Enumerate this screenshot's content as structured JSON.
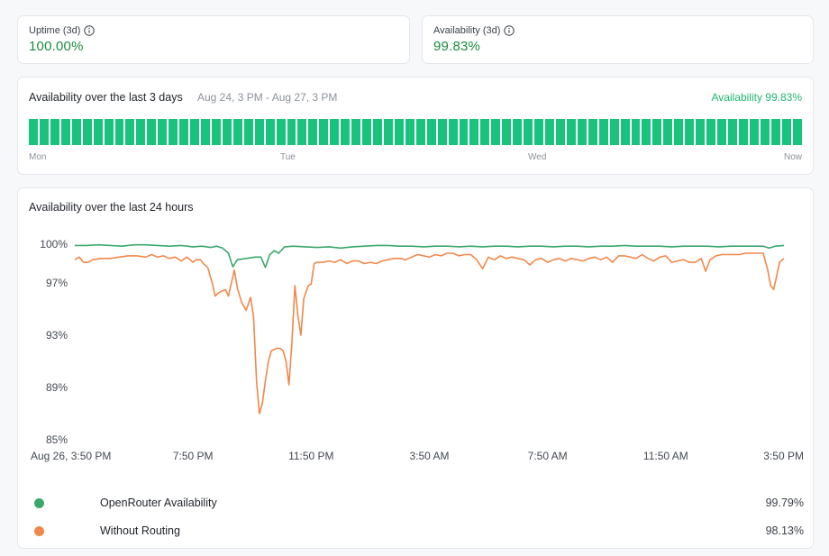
{
  "uptime": {
    "label": "Uptime (3d)",
    "value": "100.00%"
  },
  "availability": {
    "label": "Availability (3d)",
    "value": "99.83%"
  },
  "availability_3d": {
    "title": "Availability over the last 3 days",
    "range": "Aug 24, 3 PM - Aug 27, 3 PM",
    "summary": "Availability 99.83%",
    "day_labels": [
      "Mon",
      "Tue",
      "Wed",
      "Now"
    ],
    "hourly_status": [
      "up",
      "up",
      "up",
      "up",
      "up",
      "up",
      "up",
      "up",
      "up",
      "up",
      "up",
      "up",
      "up",
      "up",
      "up",
      "up",
      "up",
      "up",
      "up",
      "up",
      "up",
      "up",
      "up",
      "up",
      "up",
      "up",
      "up",
      "up",
      "up",
      "up",
      "up",
      "up",
      "up",
      "up",
      "up",
      "up",
      "up",
      "up",
      "up",
      "up",
      "up",
      "up",
      "up",
      "up",
      "up",
      "up",
      "up",
      "up",
      "up",
      "up",
      "up",
      "up",
      "up",
      "up",
      "up",
      "up",
      "up",
      "up",
      "up",
      "up",
      "up",
      "up",
      "up",
      "up",
      "up",
      "up",
      "up",
      "up",
      "up",
      "up",
      "up",
      "up"
    ]
  },
  "availability_24h": {
    "title": "Availability over the last 24 hours"
  },
  "legend": [
    {
      "name": "OpenRouter Availability",
      "value": "99.79%",
      "color": "#3aa86b"
    },
    {
      "name": "Without Routing",
      "value": "98.13%",
      "color": "#f0884b"
    }
  ],
  "chart_data": {
    "type": "line",
    "y_ticks": [
      "100%",
      "97%",
      "93%",
      "89%",
      "85%"
    ],
    "ylim": [
      85,
      100
    ],
    "x_tick_labels": [
      "Aug 26, 3:50 PM",
      "7:50 PM",
      "11:50 PM",
      "3:50 AM",
      "7:50 AM",
      "11:50 AM",
      "3:50 PM"
    ],
    "x_hours": [
      0,
      4,
      8,
      12,
      16,
      20,
      24
    ],
    "series": [
      {
        "name": "OpenRouter Availability",
        "color": "#3aa86b",
        "points": [
          [
            0,
            99.9
          ],
          [
            0.4,
            99.9
          ],
          [
            0.8,
            99.95
          ],
          [
            1.2,
            99.9
          ],
          [
            1.6,
            99.85
          ],
          [
            2.0,
            99.95
          ],
          [
            2.4,
            99.95
          ],
          [
            2.8,
            99.9
          ],
          [
            3.2,
            99.85
          ],
          [
            3.6,
            99.9
          ],
          [
            4.0,
            99.8
          ],
          [
            4.3,
            99.85
          ],
          [
            4.6,
            99.75
          ],
          [
            4.8,
            99.85
          ],
          [
            5.0,
            99.7
          ],
          [
            5.2,
            99.3
          ],
          [
            5.35,
            98.25
          ],
          [
            5.5,
            98.8
          ],
          [
            5.8,
            98.9
          ],
          [
            6.1,
            99.0
          ],
          [
            6.3,
            99.0
          ],
          [
            6.45,
            98.2
          ],
          [
            6.6,
            99.2
          ],
          [
            6.75,
            99.5
          ],
          [
            6.9,
            99.3
          ],
          [
            7.1,
            99.8
          ],
          [
            7.4,
            99.85
          ],
          [
            7.8,
            99.8
          ],
          [
            8.2,
            99.75
          ],
          [
            8.6,
            99.8
          ],
          [
            9.0,
            99.7
          ],
          [
            9.4,
            99.8
          ],
          [
            9.8,
            99.85
          ],
          [
            10.2,
            99.9
          ],
          [
            10.6,
            99.9
          ],
          [
            11.0,
            99.85
          ],
          [
            11.4,
            99.85
          ],
          [
            11.8,
            99.8
          ],
          [
            12.2,
            99.85
          ],
          [
            12.6,
            99.85
          ],
          [
            13.0,
            99.8
          ],
          [
            13.4,
            99.85
          ],
          [
            13.8,
            99.8
          ],
          [
            14.2,
            99.85
          ],
          [
            14.6,
            99.85
          ],
          [
            15.0,
            99.8
          ],
          [
            15.4,
            99.85
          ],
          [
            15.8,
            99.85
          ],
          [
            16.2,
            99.8
          ],
          [
            16.6,
            99.85
          ],
          [
            17.0,
            99.85
          ],
          [
            17.4,
            99.8
          ],
          [
            17.8,
            99.85
          ],
          [
            18.2,
            99.85
          ],
          [
            18.6,
            99.9
          ],
          [
            19.0,
            99.85
          ],
          [
            19.4,
            99.85
          ],
          [
            19.8,
            99.85
          ],
          [
            20.2,
            99.8
          ],
          [
            20.6,
            99.85
          ],
          [
            21.0,
            99.85
          ],
          [
            21.4,
            99.85
          ],
          [
            21.8,
            99.8
          ],
          [
            22.2,
            99.85
          ],
          [
            22.6,
            99.85
          ],
          [
            23.0,
            99.85
          ],
          [
            23.3,
            99.85
          ],
          [
            23.5,
            99.7
          ],
          [
            23.7,
            99.85
          ],
          [
            24.0,
            99.9
          ]
        ]
      },
      {
        "name": "Without Routing",
        "color": "#f0884b",
        "points": [
          [
            0,
            98.8
          ],
          [
            0.15,
            99.0
          ],
          [
            0.3,
            98.6
          ],
          [
            0.45,
            98.6
          ],
          [
            0.6,
            98.8
          ],
          [
            0.9,
            98.9
          ],
          [
            1.2,
            98.9
          ],
          [
            1.5,
            99.0
          ],
          [
            1.8,
            99.1
          ],
          [
            2.1,
            99.1
          ],
          [
            2.4,
            99.0
          ],
          [
            2.6,
            99.2
          ],
          [
            2.8,
            99.0
          ],
          [
            3.0,
            99.1
          ],
          [
            3.2,
            98.9
          ],
          [
            3.4,
            99.0
          ],
          [
            3.6,
            98.7
          ],
          [
            3.8,
            99.0
          ],
          [
            4.0,
            98.6
          ],
          [
            4.1,
            98.8
          ],
          [
            4.25,
            98.8
          ],
          [
            4.35,
            98.5
          ],
          [
            4.5,
            98.2
          ],
          [
            4.65,
            97.0
          ],
          [
            4.75,
            96.0
          ],
          [
            4.9,
            96.3
          ],
          [
            5.1,
            96.5
          ],
          [
            5.2,
            96.0
          ],
          [
            5.3,
            97.0
          ],
          [
            5.4,
            98.0
          ],
          [
            5.5,
            96.6
          ],
          [
            5.65,
            95.5
          ],
          [
            5.8,
            94.9
          ],
          [
            5.95,
            95.9
          ],
          [
            6.05,
            94.4
          ],
          [
            6.15,
            89.5
          ],
          [
            6.25,
            87.0
          ],
          [
            6.35,
            87.8
          ],
          [
            6.45,
            89.5
          ],
          [
            6.55,
            91.0
          ],
          [
            6.65,
            91.8
          ],
          [
            6.75,
            91.9
          ],
          [
            6.85,
            92.0
          ],
          [
            6.95,
            92.0
          ],
          [
            7.05,
            91.8
          ],
          [
            7.15,
            91.0
          ],
          [
            7.25,
            89.2
          ],
          [
            7.35,
            92.5
          ],
          [
            7.45,
            96.8
          ],
          [
            7.55,
            94.5
          ],
          [
            7.65,
            93.0
          ],
          [
            7.75,
            95.8
          ],
          [
            7.9,
            96.8
          ],
          [
            8.0,
            96.9
          ],
          [
            8.1,
            98.5
          ],
          [
            8.2,
            98.6
          ],
          [
            8.4,
            98.6
          ],
          [
            8.6,
            98.7
          ],
          [
            8.8,
            98.6
          ],
          [
            9.0,
            98.8
          ],
          [
            9.2,
            98.5
          ],
          [
            9.4,
            98.7
          ],
          [
            9.6,
            98.7
          ],
          [
            9.8,
            98.5
          ],
          [
            10.0,
            98.6
          ],
          [
            10.2,
            98.5
          ],
          [
            10.4,
            98.7
          ],
          [
            10.6,
            98.8
          ],
          [
            10.8,
            98.9
          ],
          [
            11.0,
            98.9
          ],
          [
            11.2,
            98.8
          ],
          [
            11.4,
            99.0
          ],
          [
            11.6,
            99.2
          ],
          [
            11.8,
            99.1
          ],
          [
            12.0,
            99.0
          ],
          [
            12.2,
            99.2
          ],
          [
            12.4,
            99.1
          ],
          [
            12.6,
            99.3
          ],
          [
            12.8,
            99.3
          ],
          [
            13.0,
            99.1
          ],
          [
            13.2,
            99.2
          ],
          [
            13.4,
            99.2
          ],
          [
            13.6,
            98.8
          ],
          [
            13.8,
            98.1
          ],
          [
            14.0,
            99.0
          ],
          [
            14.2,
            98.8
          ],
          [
            14.4,
            99.1
          ],
          [
            14.6,
            98.9
          ],
          [
            14.8,
            99.0
          ],
          [
            15.0,
            98.9
          ],
          [
            15.2,
            98.8
          ],
          [
            15.4,
            98.4
          ],
          [
            15.6,
            98.8
          ],
          [
            15.8,
            98.9
          ],
          [
            16.0,
            98.6
          ],
          [
            16.2,
            98.8
          ],
          [
            16.4,
            98.9
          ],
          [
            16.6,
            98.7
          ],
          [
            16.8,
            98.9
          ],
          [
            17.0,
            98.8
          ],
          [
            17.2,
            98.7
          ],
          [
            17.4,
            98.9
          ],
          [
            17.6,
            99.0
          ],
          [
            17.8,
            98.8
          ],
          [
            18.0,
            99.0
          ],
          [
            18.2,
            98.6
          ],
          [
            18.4,
            99.1
          ],
          [
            18.6,
            99.1
          ],
          [
            18.8,
            99.0
          ],
          [
            19.0,
            98.9
          ],
          [
            19.2,
            99.2
          ],
          [
            19.4,
            98.9
          ],
          [
            19.6,
            98.7
          ],
          [
            19.8,
            99.0
          ],
          [
            20.0,
            99.1
          ],
          [
            20.2,
            98.6
          ],
          [
            20.4,
            98.7
          ],
          [
            20.6,
            98.8
          ],
          [
            20.8,
            98.6
          ],
          [
            21.0,
            98.6
          ],
          [
            21.2,
            98.9
          ],
          [
            21.35,
            97.9
          ],
          [
            21.5,
            98.8
          ],
          [
            21.7,
            99.1
          ],
          [
            21.9,
            99.2
          ],
          [
            22.1,
            99.2
          ],
          [
            22.3,
            99.2
          ],
          [
            22.5,
            99.2
          ],
          [
            22.7,
            99.3
          ],
          [
            22.9,
            99.3
          ],
          [
            23.1,
            99.3
          ],
          [
            23.3,
            99.3
          ],
          [
            23.45,
            98.0
          ],
          [
            23.55,
            96.8
          ],
          [
            23.65,
            96.5
          ],
          [
            23.75,
            97.5
          ],
          [
            23.85,
            98.6
          ],
          [
            24.0,
            98.9
          ]
        ]
      }
    ]
  }
}
